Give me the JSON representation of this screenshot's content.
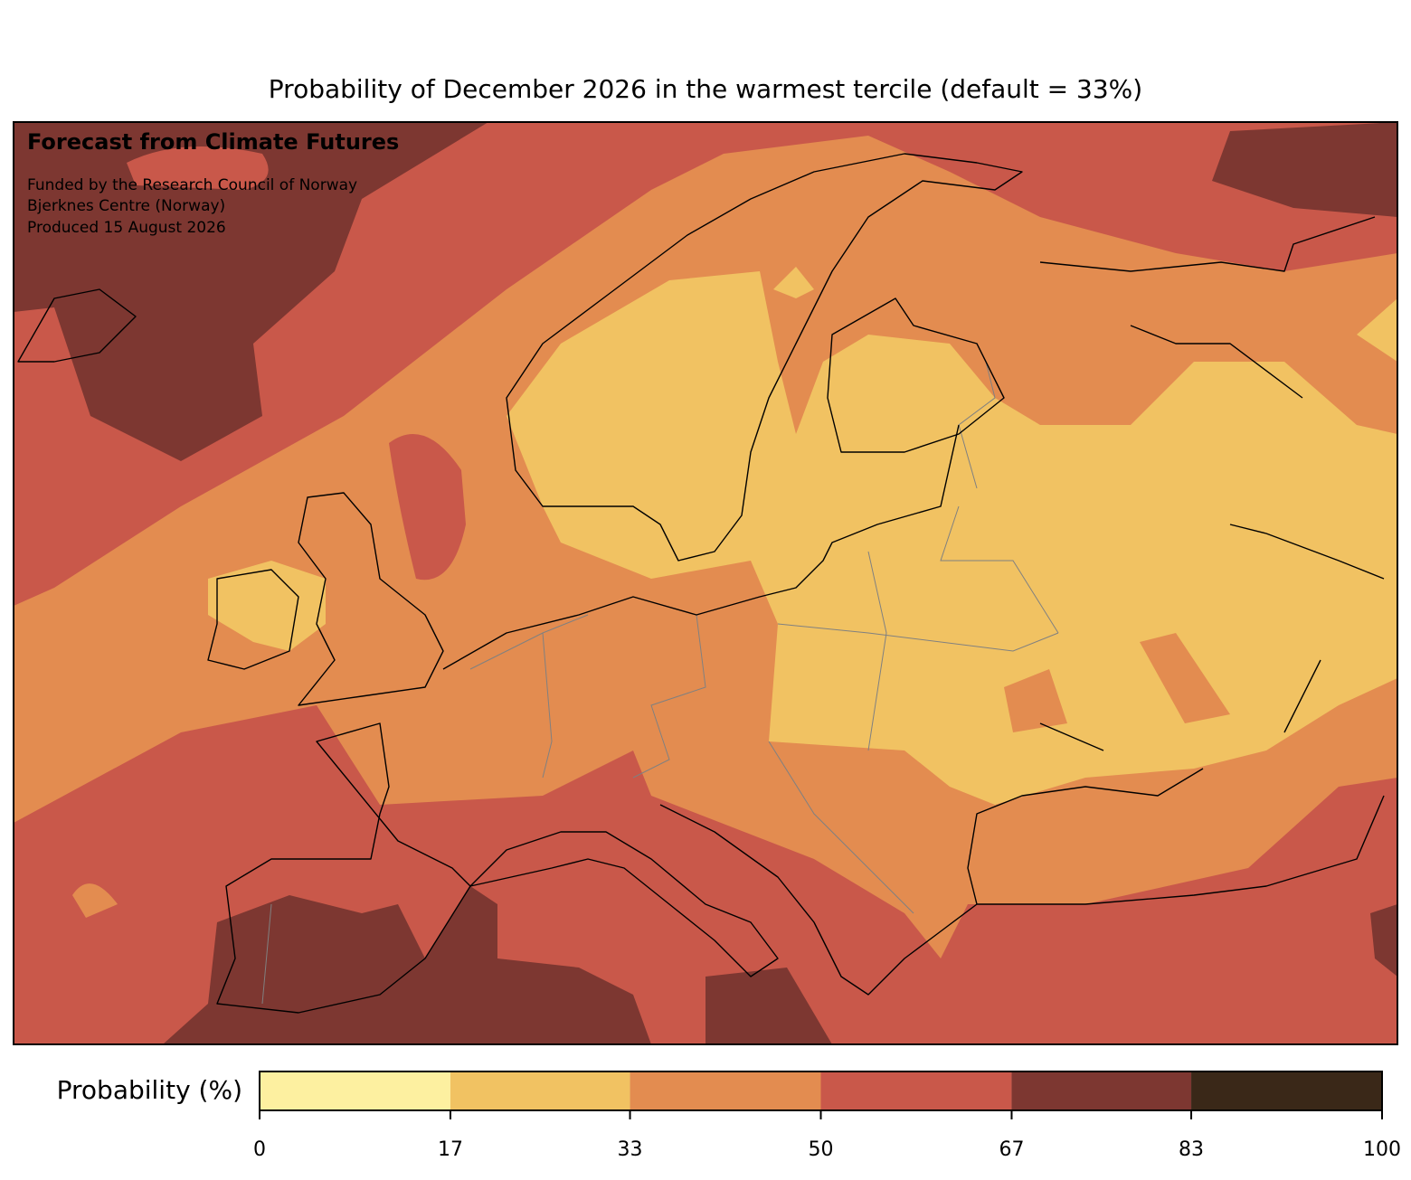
{
  "title": "Probability of December 2026 in the warmest tercile (default = 33%)",
  "annotations": {
    "heading": "Forecast from Climate Futures",
    "lines": [
      "Funded by the Research Council of Norway",
      "Bjerknes Centre (Norway)",
      "Produced 15 August 2026"
    ]
  },
  "colorbar": {
    "label": "Probability (%)",
    "lim": [
      0,
      100
    ],
    "ticks": [
      0,
      17,
      33,
      50,
      67,
      83,
      100
    ],
    "colors": [
      "#fdf0a0",
      "#f1c262",
      "#e38c50",
      "#c9584a",
      "#7d3731",
      "#3a2818"
    ]
  }
}
